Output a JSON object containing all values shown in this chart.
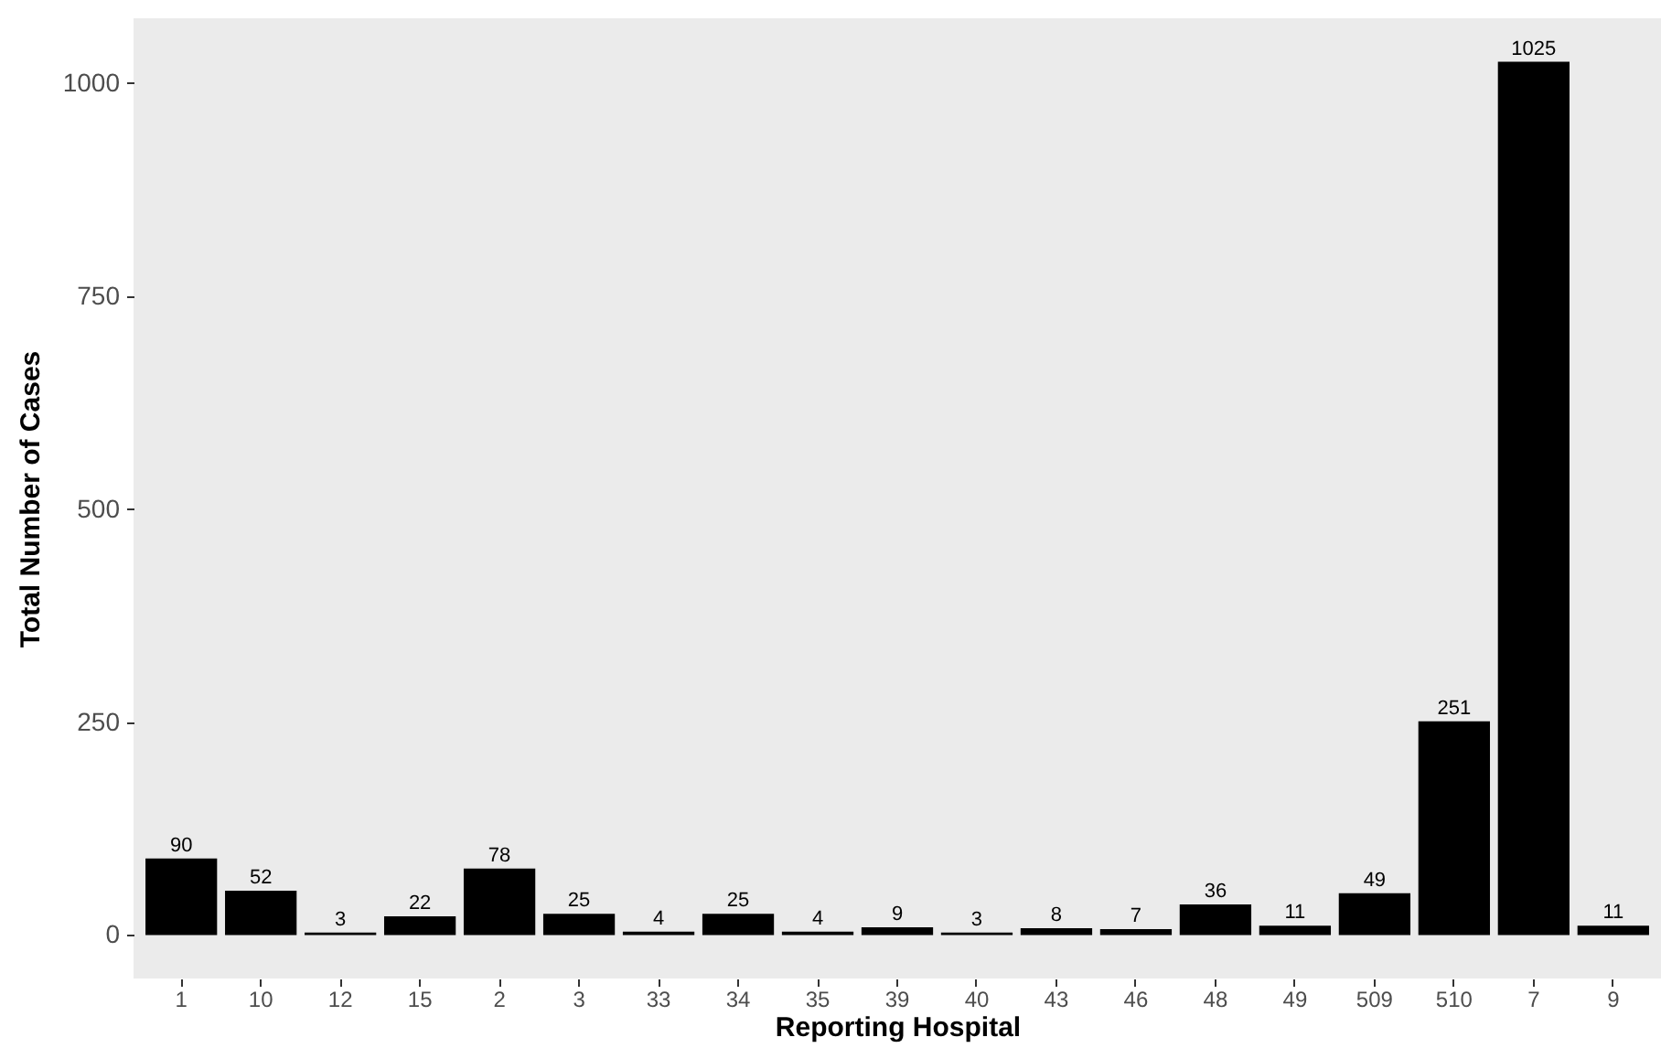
{
  "chart_data": {
    "type": "bar",
    "xlabel": "Reporting Hospital",
    "ylabel": "Total Number of Cases",
    "categories": [
      "1",
      "10",
      "12",
      "15",
      "2",
      "3",
      "33",
      "34",
      "35",
      "39",
      "40",
      "43",
      "46",
      "48",
      "49",
      "509",
      "510",
      "7",
      "9"
    ],
    "values": [
      90,
      52,
      3,
      22,
      78,
      25,
      4,
      25,
      4,
      9,
      3,
      8,
      7,
      36,
      11,
      49,
      251,
      1025,
      11
    ],
    "color": "#000000",
    "ylim": [
      -51,
      1076
    ],
    "yticks": [
      0,
      250,
      500,
      750,
      1000
    ],
    "grid": false,
    "data_labels": true
  }
}
